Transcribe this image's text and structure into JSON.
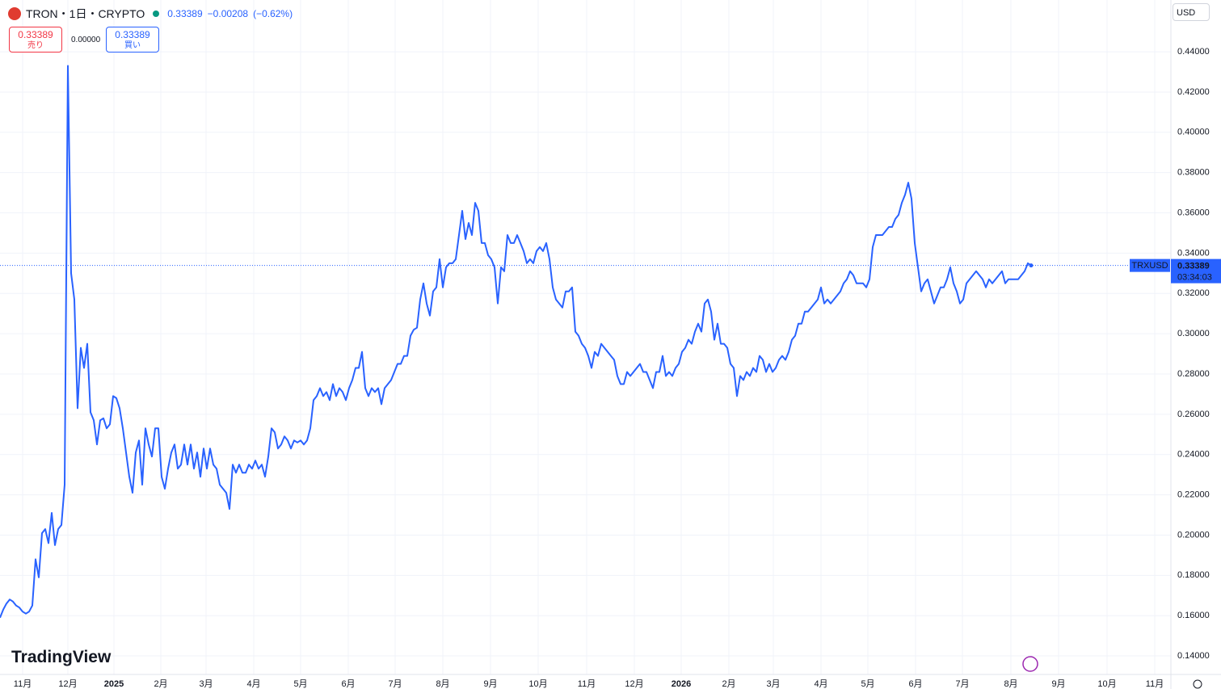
{
  "header": {
    "symbol": "TRON・1日・CRYPTO",
    "price": "0.33389",
    "change": "−0.00208",
    "change_pct": "(−0.62%)"
  },
  "order_panel": {
    "sell_price": "0.33389",
    "sell_label": "売り",
    "spread": "0.00000",
    "buy_price": "0.33389",
    "buy_label": "買い"
  },
  "currency": "USD",
  "brand": "TradingView",
  "chart_data": {
    "type": "line",
    "series": [
      {
        "name": "TRXUSD",
        "color": "#2962ff",
        "values": [
          0.159,
          0.163,
          0.166,
          0.168,
          0.167,
          0.165,
          0.164,
          0.162,
          0.161,
          0.162,
          0.165,
          0.188,
          0.179,
          0.201,
          0.203,
          0.196,
          0.211,
          0.195,
          0.203,
          0.205,
          0.225,
          0.433,
          0.33,
          0.317,
          0.263,
          0.293,
          0.283,
          0.295,
          0.261,
          0.257,
          0.245,
          0.257,
          0.258,
          0.253,
          0.255,
          0.269,
          0.268,
          0.263,
          0.253,
          0.241,
          0.229,
          0.221,
          0.241,
          0.247,
          0.225,
          0.253,
          0.245,
          0.239,
          0.253,
          0.253,
          0.229,
          0.223,
          0.233,
          0.241,
          0.245,
          0.233,
          0.235,
          0.245,
          0.235,
          0.245,
          0.233,
          0.241,
          0.229,
          0.243,
          0.233,
          0.243,
          0.235,
          0.233,
          0.225,
          0.223,
          0.221,
          0.213,
          0.235,
          0.231,
          0.235,
          0.231,
          0.231,
          0.235,
          0.233,
          0.237,
          0.233,
          0.235,
          0.229,
          0.239,
          0.253,
          0.251,
          0.243,
          0.245,
          0.249,
          0.247,
          0.243,
          0.247,
          0.246,
          0.247,
          0.245,
          0.247,
          0.253,
          0.267,
          0.269,
          0.273,
          0.269,
          0.271,
          0.267,
          0.275,
          0.269,
          0.273,
          0.271,
          0.267,
          0.273,
          0.277,
          0.283,
          0.283,
          0.291,
          0.273,
          0.269,
          0.273,
          0.271,
          0.273,
          0.265,
          0.273,
          0.275,
          0.277,
          0.281,
          0.285,
          0.285,
          0.289,
          0.289,
          0.299,
          0.302,
          0.303,
          0.317,
          0.325,
          0.315,
          0.309,
          0.321,
          0.323,
          0.337,
          0.323,
          0.333,
          0.335,
          0.335,
          0.337,
          0.349,
          0.361,
          0.347,
          0.355,
          0.349,
          0.365,
          0.361,
          0.345,
          0.345,
          0.339,
          0.337,
          0.333,
          0.315,
          0.333,
          0.331,
          0.349,
          0.345,
          0.345,
          0.349,
          0.345,
          0.341,
          0.335,
          0.337,
          0.335,
          0.341,
          0.343,
          0.341,
          0.345,
          0.337,
          0.323,
          0.317,
          0.315,
          0.313,
          0.321,
          0.321,
          0.323,
          0.301,
          0.299,
          0.295,
          0.293,
          0.289,
          0.283,
          0.291,
          0.289,
          0.295,
          0.293,
          0.291,
          0.289,
          0.287,
          0.279,
          0.275,
          0.275,
          0.281,
          0.279,
          0.281,
          0.283,
          0.285,
          0.281,
          0.281,
          0.277,
          0.273,
          0.281,
          0.281,
          0.289,
          0.279,
          0.281,
          0.279,
          0.283,
          0.285,
          0.291,
          0.293,
          0.297,
          0.295,
          0.301,
          0.305,
          0.301,
          0.315,
          0.317,
          0.311,
          0.297,
          0.305,
          0.295,
          0.295,
          0.293,
          0.285,
          0.283,
          0.269,
          0.279,
          0.277,
          0.281,
          0.279,
          0.283,
          0.281,
          0.289,
          0.287,
          0.281,
          0.285,
          0.281,
          0.283,
          0.287,
          0.289,
          0.287,
          0.291,
          0.297,
          0.299,
          0.305,
          0.305,
          0.311,
          0.311,
          0.313,
          0.315,
          0.317,
          0.323,
          0.315,
          0.317,
          0.315,
          0.317,
          0.319,
          0.321,
          0.325,
          0.327,
          0.331,
          0.329,
          0.325,
          0.325,
          0.325,
          0.323,
          0.327,
          0.343,
          0.349,
          0.349,
          0.349,
          0.351,
          0.353,
          0.353,
          0.357,
          0.359,
          0.365,
          0.369,
          0.375,
          0.367,
          0.345,
          0.333,
          0.321,
          0.325,
          0.327,
          0.321,
          0.315,
          0.319,
          0.323,
          0.323,
          0.327,
          0.333,
          0.325,
          0.321,
          0.315,
          0.317,
          0.325,
          0.327,
          0.329,
          0.331,
          0.329,
          0.327,
          0.323,
          0.327,
          0.325,
          0.327,
          0.329,
          0.331,
          0.325,
          0.327,
          0.327,
          0.327,
          0.327,
          0.329,
          0.331,
          0.335,
          0.33389
        ]
      }
    ],
    "countdown": "03:34:03",
    "x_labels": [
      "11月",
      "12月",
      "2025",
      "2月",
      "3月",
      "4月",
      "5月",
      "6月",
      "7月",
      "8月",
      "9月",
      "10月",
      "11月",
      "12月",
      "2026",
      "2月",
      "3月",
      "4月",
      "5月",
      "6月",
      "7月",
      "8月",
      "9月",
      "10月",
      "11月"
    ],
    "ylim": [
      0.1308,
      0.4657
    ],
    "yticks": [
      {
        "value": 0.14,
        "label": "0.14000"
      },
      {
        "value": 0.16,
        "label": "0.16000"
      },
      {
        "value": 0.18,
        "label": "0.18000"
      },
      {
        "value": 0.2,
        "label": "0.20000"
      },
      {
        "value": 0.22,
        "label": "0.22000"
      },
      {
        "value": 0.24,
        "label": "0.24000"
      },
      {
        "value": 0.26,
        "label": "0.26000"
      },
      {
        "value": 0.28,
        "label": "0.28000"
      },
      {
        "value": 0.3,
        "label": "0.30000"
      },
      {
        "value": 0.32,
        "label": "0.32000"
      },
      {
        "value": 0.34,
        "label": "0.34000"
      },
      {
        "value": 0.36,
        "label": "0.36000"
      },
      {
        "value": 0.38,
        "label": "0.38000"
      },
      {
        "value": 0.4,
        "label": "0.40000"
      },
      {
        "value": 0.42,
        "label": "0.42000"
      },
      {
        "value": 0.44,
        "label": "0.44000"
      }
    ],
    "grid": true
  }
}
